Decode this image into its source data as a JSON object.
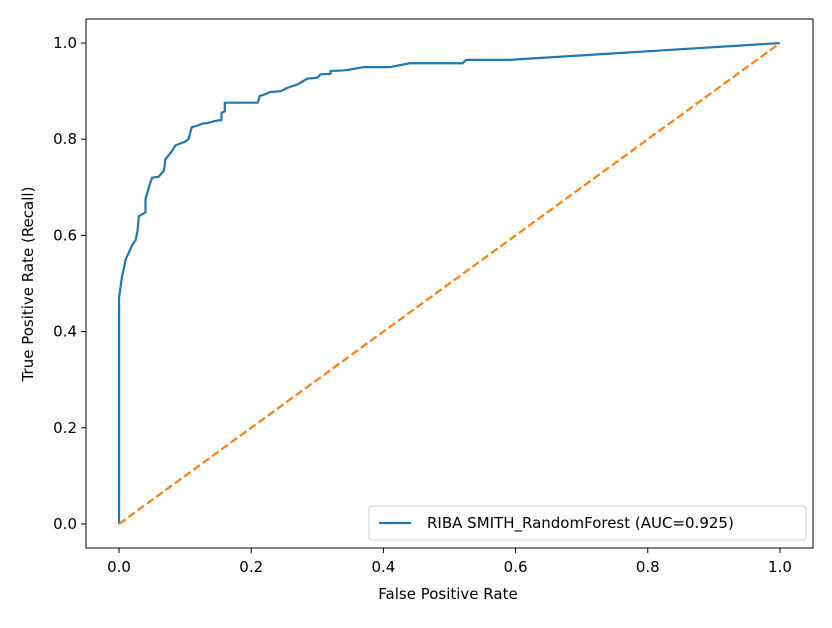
{
  "chart_data": {
    "type": "line",
    "title": "",
    "xlabel": "False Positive Rate",
    "ylabel": "True Positive Rate (Recall)",
    "xlim": [
      -0.05,
      1.05
    ],
    "ylim": [
      -0.05,
      1.05
    ],
    "xticks": [
      0.0,
      0.2,
      0.4,
      0.6,
      0.8,
      1.0
    ],
    "xtick_labels": [
      "0.0",
      "0.2",
      "0.4",
      "0.6",
      "0.8",
      "1.0"
    ],
    "yticks": [
      0.0,
      0.2,
      0.4,
      0.6,
      0.8,
      1.0
    ],
    "ytick_labels": [
      "0.0",
      "0.2",
      "0.4",
      "0.6",
      "0.8",
      "1.0"
    ],
    "grid": false,
    "legend_position": "lower right",
    "series": [
      {
        "name": "RIBA SMITH_RandomForest (AUC=0.925)",
        "color": "#1f77b4",
        "style": "solid",
        "in_legend": true,
        "points": [
          [
            0.0,
            0.0
          ],
          [
            0.0,
            0.47
          ],
          [
            0.002,
            0.49
          ],
          [
            0.004,
            0.51
          ],
          [
            0.007,
            0.53
          ],
          [
            0.01,
            0.55
          ],
          [
            0.015,
            0.565
          ],
          [
            0.02,
            0.58
          ],
          [
            0.025,
            0.59
          ],
          [
            0.028,
            0.61
          ],
          [
            0.03,
            0.64
          ],
          [
            0.04,
            0.648
          ],
          [
            0.04,
            0.675
          ],
          [
            0.045,
            0.7
          ],
          [
            0.05,
            0.72
          ],
          [
            0.06,
            0.722
          ],
          [
            0.068,
            0.735
          ],
          [
            0.07,
            0.758
          ],
          [
            0.08,
            0.775
          ],
          [
            0.085,
            0.787
          ],
          [
            0.1,
            0.795
          ],
          [
            0.105,
            0.8
          ],
          [
            0.11,
            0.825
          ],
          [
            0.118,
            0.828
          ],
          [
            0.125,
            0.832
          ],
          [
            0.135,
            0.834
          ],
          [
            0.145,
            0.838
          ],
          [
            0.155,
            0.84
          ],
          [
            0.155,
            0.855
          ],
          [
            0.16,
            0.858
          ],
          [
            0.16,
            0.876
          ],
          [
            0.2,
            0.876
          ],
          [
            0.21,
            0.876
          ],
          [
            0.213,
            0.89
          ],
          [
            0.22,
            0.893
          ],
          [
            0.228,
            0.898
          ],
          [
            0.245,
            0.9
          ],
          [
            0.255,
            0.907
          ],
          [
            0.27,
            0.914
          ],
          [
            0.285,
            0.926
          ],
          [
            0.3,
            0.928
          ],
          [
            0.305,
            0.935
          ],
          [
            0.32,
            0.936
          ],
          [
            0.32,
            0.942
          ],
          [
            0.34,
            0.943
          ],
          [
            0.35,
            0.945
          ],
          [
            0.37,
            0.95
          ],
          [
            0.41,
            0.95
          ],
          [
            0.44,
            0.958
          ],
          [
            0.52,
            0.958
          ],
          [
            0.525,
            0.965
          ],
          [
            0.59,
            0.965
          ],
          [
            1.0,
            1.0
          ]
        ]
      },
      {
        "name": "",
        "color": "#ff7f0e",
        "style": "dashed",
        "in_legend": false,
        "points": [
          [
            0.0,
            0.0
          ],
          [
            1.0,
            1.0
          ]
        ]
      }
    ]
  }
}
